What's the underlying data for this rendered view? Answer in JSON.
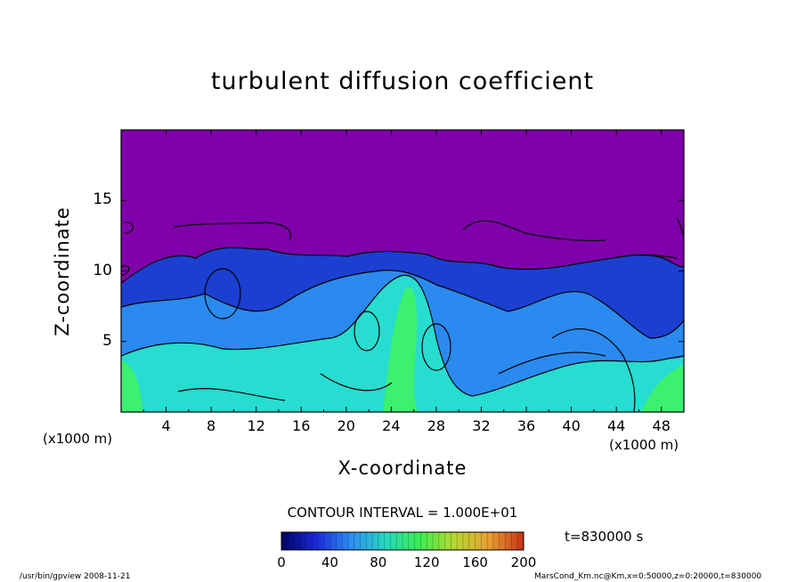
{
  "chart_data": {
    "type": "heatmap",
    "title": "turbulent diffusion coefficient",
    "xlabel": "X-coordinate",
    "ylabel": "Z-coordinate",
    "x_unit": "(x1000 m)",
    "x_ticks": [
      "4",
      "8",
      "12",
      "16",
      "20",
      "24",
      "28",
      "32",
      "36",
      "40",
      "44",
      "48"
    ],
    "y_ticks": [
      "5",
      "10",
      "15"
    ],
    "xlim": [
      0,
      50
    ],
    "ylim": [
      0,
      20
    ],
    "contour_interval_text": "CONTOUR INTERVAL = 1.000E+01",
    "colorbar": {
      "range": [
        0,
        200
      ],
      "ticks": [
        "0",
        "40",
        "80",
        "120",
        "160",
        "200"
      ],
      "colors": [
        "#000066",
        "#1a2ad8",
        "#2e8cf5",
        "#25d8c0",
        "#3bee52",
        "#b8d830",
        "#e8a030",
        "#c83218"
      ]
    },
    "time_label": "t=830000 s",
    "field_colors": {
      "upper_background": "#7f00aa",
      "low": "#1b3fd0",
      "mid": "#2a8af0",
      "high": "#27dcd0",
      "peak": "#3cf070"
    }
  },
  "footer": {
    "left": "/usr/bin/gpview   2008-11-21",
    "right": "MarsCond_Km.nc@Km,x=0:50000,z=0:20000,t=830000"
  }
}
